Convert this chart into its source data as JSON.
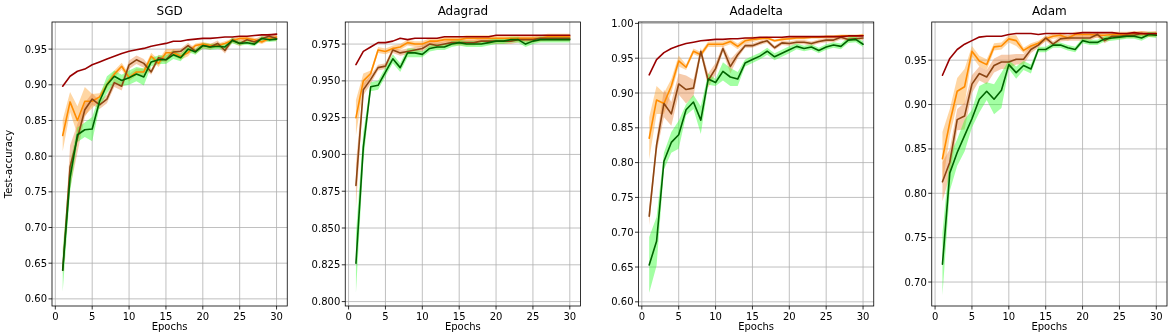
{
  "chart_data": [
    {
      "type": "line",
      "title": "SGD",
      "xlabel": "Epochs",
      "ylabel": "Test-accuracy",
      "grid": true,
      "x": [
        1,
        2,
        3,
        4,
        5,
        6,
        7,
        8,
        9,
        10,
        11,
        12,
        13,
        14,
        15,
        16,
        17,
        18,
        19,
        20,
        21,
        22,
        23,
        24,
        25,
        26,
        27,
        28,
        29,
        30
      ],
      "xlim": [
        -0.45,
        31.45
      ],
      "xticks": [
        0,
        5,
        10,
        15,
        20,
        25,
        30
      ],
      "ylim": [
        0.59,
        0.988
      ],
      "yticks": [
        {
          "value": 0.6,
          "label": "0.60"
        },
        {
          "value": 0.65,
          "label": "0.65"
        },
        {
          "value": 0.7,
          "label": "0.70"
        },
        {
          "value": 0.75,
          "label": "0.75"
        },
        {
          "value": 0.8,
          "label": "0.80"
        },
        {
          "value": 0.85,
          "label": "0.85"
        },
        {
          "value": 0.9,
          "label": "0.90"
        },
        {
          "value": 0.95,
          "label": "0.95"
        }
      ],
      "series": [
        {
          "color": "#ff8c00",
          "values": [
            0.829,
            0.876,
            0.85,
            0.877,
            0.877,
            0.883,
            0.9,
            0.915,
            0.926,
            0.91,
            0.918,
            0.918,
            0.94,
            0.93,
            0.945,
            0.945,
            0.94,
            0.945,
            0.955,
            0.957,
            0.955,
            0.955,
            0.958,
            0.962,
            0.965,
            0.965,
            0.963,
            0.96,
            0.965,
            0.967
          ],
          "lower": [
            0.807,
            0.862,
            0.83,
            0.857,
            0.867,
            0.878,
            0.895,
            0.91,
            0.921,
            0.905,
            0.913,
            0.913,
            0.935,
            0.925,
            0.94,
            0.94,
            0.935,
            0.94,
            0.952,
            0.954,
            0.952,
            0.952,
            0.955,
            0.959,
            0.962,
            0.962,
            0.96,
            0.957,
            0.962,
            0.964
          ],
          "upper": [
            0.851,
            0.89,
            0.87,
            0.897,
            0.887,
            0.888,
            0.905,
            0.92,
            0.931,
            0.915,
            0.923,
            0.923,
            0.945,
            0.935,
            0.95,
            0.95,
            0.945,
            0.95,
            0.958,
            0.96,
            0.958,
            0.958,
            0.961,
            0.965,
            0.968,
            0.968,
            0.966,
            0.963,
            0.968,
            0.97
          ]
        },
        {
          "color": "#8b4513",
          "values": [
            0.64,
            0.785,
            0.825,
            0.865,
            0.88,
            0.872,
            0.88,
            0.903,
            0.898,
            0.928,
            0.935,
            0.93,
            0.918,
            0.938,
            0.935,
            0.946,
            0.947,
            0.955,
            0.947,
            0.955,
            0.953,
            0.958,
            0.948,
            0.963,
            0.958,
            0.963,
            0.96,
            0.965,
            0.968,
            0.965
          ],
          "lower": [
            0.635,
            0.755,
            0.805,
            0.855,
            0.872,
            0.866,
            0.874,
            0.897,
            0.892,
            0.922,
            0.929,
            0.924,
            0.914,
            0.934,
            0.931,
            0.942,
            0.943,
            0.951,
            0.943,
            0.951,
            0.949,
            0.954,
            0.944,
            0.959,
            0.954,
            0.959,
            0.956,
            0.961,
            0.964,
            0.961
          ],
          "upper": [
            0.645,
            0.815,
            0.845,
            0.875,
            0.888,
            0.878,
            0.886,
            0.909,
            0.904,
            0.934,
            0.941,
            0.936,
            0.922,
            0.942,
            0.939,
            0.95,
            0.951,
            0.959,
            0.951,
            0.959,
            0.957,
            0.962,
            0.952,
            0.967,
            0.962,
            0.967,
            0.964,
            0.969,
            0.972,
            0.969
          ]
        },
        {
          "color": "#006400",
          "values": [
            0.64,
            0.77,
            0.83,
            0.837,
            0.838,
            0.877,
            0.9,
            0.912,
            0.906,
            0.91,
            0.915,
            0.911,
            0.932,
            0.935,
            0.935,
            0.942,
            0.938,
            0.95,
            0.946,
            0.955,
            0.953,
            0.954,
            0.953,
            0.962,
            0.958,
            0.959,
            0.957,
            0.965,
            0.963,
            0.964
          ],
          "lower": [
            0.61,
            0.75,
            0.82,
            0.827,
            0.821,
            0.869,
            0.888,
            0.904,
            0.898,
            0.9,
            0.905,
            0.899,
            0.926,
            0.929,
            0.929,
            0.936,
            0.933,
            0.946,
            0.942,
            0.951,
            0.949,
            0.95,
            0.949,
            0.958,
            0.955,
            0.956,
            0.954,
            0.962,
            0.96,
            0.961
          ],
          "upper": [
            0.67,
            0.79,
            0.84,
            0.847,
            0.855,
            0.885,
            0.912,
            0.92,
            0.914,
            0.92,
            0.925,
            0.923,
            0.938,
            0.941,
            0.941,
            0.948,
            0.943,
            0.954,
            0.95,
            0.959,
            0.957,
            0.958,
            0.957,
            0.966,
            0.961,
            0.962,
            0.96,
            0.968,
            0.966,
            0.967
          ]
        },
        {
          "color": "#990000",
          "values": [
            0.898,
            0.912,
            0.919,
            0.922,
            0.928,
            0.932,
            0.936,
            0.94,
            0.944,
            0.947,
            0.949,
            0.951,
            0.954,
            0.956,
            0.958,
            0.961,
            0.961,
            0.963,
            0.964,
            0.965,
            0.965,
            0.966,
            0.967,
            0.967,
            0.968,
            0.968,
            0.969,
            0.97,
            0.97,
            0.971
          ]
        }
      ]
    },
    {
      "type": "line",
      "title": "Adagrad",
      "xlabel": "Epochs",
      "grid": true,
      "x": [
        1,
        2,
        3,
        4,
        5,
        6,
        7,
        8,
        9,
        10,
        11,
        12,
        13,
        14,
        15,
        16,
        17,
        18,
        19,
        20,
        21,
        22,
        23,
        24,
        25,
        26,
        27,
        28,
        29,
        30
      ],
      "xlim": [
        -0.45,
        31.45
      ],
      "xticks": [
        0,
        5,
        10,
        15,
        20,
        25,
        30
      ],
      "ylim": [
        0.797,
        0.99
      ],
      "yticks": [
        {
          "value": 0.8,
          "label": "0.800"
        },
        {
          "value": 0.825,
          "label": "0.825"
        },
        {
          "value": 0.85,
          "label": "0.850"
        },
        {
          "value": 0.875,
          "label": "0.875"
        },
        {
          "value": 0.9,
          "label": "0.900"
        },
        {
          "value": 0.925,
          "label": "0.925"
        },
        {
          "value": 0.95,
          "label": "0.950"
        },
        {
          "value": 0.975,
          "label": "0.975"
        }
      ],
      "series": [
        {
          "color": "#ff8c00",
          "values": [
            0.925,
            0.95,
            0.955,
            0.971,
            0.97,
            0.972,
            0.973,
            0.976,
            0.975,
            0.975,
            0.977,
            0.977,
            0.978,
            0.978,
            0.978,
            0.979,
            0.979,
            0.979,
            0.979,
            0.979,
            0.979,
            0.979,
            0.979,
            0.979,
            0.979,
            0.979,
            0.98,
            0.98,
            0.98,
            0.98
          ],
          "lower": [
            0.913,
            0.945,
            0.953,
            0.969,
            0.968,
            0.97,
            0.971,
            0.974,
            0.973,
            0.973,
            0.975,
            0.975,
            0.976,
            0.976,
            0.976,
            0.977,
            0.977,
            0.977,
            0.977,
            0.977,
            0.977,
            0.977,
            0.977,
            0.977,
            0.977,
            0.977,
            0.978,
            0.978,
            0.978,
            0.978
          ],
          "upper": [
            0.937,
            0.955,
            0.957,
            0.973,
            0.972,
            0.974,
            0.975,
            0.978,
            0.977,
            0.977,
            0.979,
            0.979,
            0.98,
            0.98,
            0.98,
            0.981,
            0.981,
            0.981,
            0.981,
            0.981,
            0.981,
            0.981,
            0.981,
            0.981,
            0.981,
            0.981,
            0.982,
            0.982,
            0.982,
            0.982
          ]
        },
        {
          "color": "#8b4513",
          "values": [
            0.879,
            0.944,
            0.951,
            0.959,
            0.96,
            0.971,
            0.969,
            0.97,
            0.971,
            0.972,
            0.975,
            0.974,
            0.975,
            0.976,
            0.976,
            0.976,
            0.976,
            0.977,
            0.977,
            0.977,
            0.977,
            0.977,
            0.978,
            0.978,
            0.978,
            0.979,
            0.979,
            0.979,
            0.979,
            0.979
          ],
          "lower": [
            0.864,
            0.94,
            0.948,
            0.957,
            0.958,
            0.969,
            0.967,
            0.968,
            0.969,
            0.97,
            0.973,
            0.972,
            0.973,
            0.974,
            0.974,
            0.974,
            0.974,
            0.975,
            0.975,
            0.975,
            0.975,
            0.975,
            0.976,
            0.976,
            0.976,
            0.977,
            0.977,
            0.977,
            0.977,
            0.977
          ],
          "upper": [
            0.894,
            0.948,
            0.954,
            0.961,
            0.962,
            0.973,
            0.971,
            0.972,
            0.973,
            0.974,
            0.977,
            0.976,
            0.977,
            0.978,
            0.978,
            0.978,
            0.978,
            0.979,
            0.979,
            0.979,
            0.979,
            0.979,
            0.98,
            0.98,
            0.98,
            0.981,
            0.981,
            0.981,
            0.981,
            0.981
          ]
        },
        {
          "color": "#006400",
          "values": [
            0.826,
            0.905,
            0.946,
            0.947,
            0.956,
            0.965,
            0.959,
            0.969,
            0.969,
            0.968,
            0.972,
            0.973,
            0.973,
            0.975,
            0.976,
            0.975,
            0.975,
            0.975,
            0.976,
            0.977,
            0.977,
            0.978,
            0.978,
            0.975,
            0.977,
            0.978,
            0.978,
            0.978,
            0.978,
            0.978
          ],
          "lower": [
            0.806,
            0.895,
            0.943,
            0.944,
            0.953,
            0.962,
            0.956,
            0.966,
            0.966,
            0.966,
            0.97,
            0.971,
            0.971,
            0.973,
            0.974,
            0.973,
            0.973,
            0.973,
            0.974,
            0.975,
            0.975,
            0.976,
            0.976,
            0.973,
            0.975,
            0.976,
            0.976,
            0.976,
            0.976,
            0.976
          ],
          "upper": [
            0.846,
            0.915,
            0.949,
            0.95,
            0.959,
            0.968,
            0.962,
            0.972,
            0.972,
            0.97,
            0.974,
            0.975,
            0.975,
            0.977,
            0.978,
            0.977,
            0.977,
            0.977,
            0.978,
            0.979,
            0.979,
            0.98,
            0.98,
            0.977,
            0.979,
            0.98,
            0.98,
            0.98,
            0.98,
            0.98
          ]
        },
        {
          "color": "#990000",
          "values": [
            0.961,
            0.97,
            0.973,
            0.976,
            0.976,
            0.977,
            0.979,
            0.978,
            0.979,
            0.979,
            0.979,
            0.979,
            0.98,
            0.98,
            0.98,
            0.98,
            0.98,
            0.98,
            0.98,
            0.981,
            0.981,
            0.981,
            0.981,
            0.981,
            0.981,
            0.981,
            0.981,
            0.981,
            0.981,
            0.981
          ]
        }
      ]
    },
    {
      "type": "line",
      "title": "Adadelta",
      "xlabel": "Epochs",
      "grid": true,
      "x": [
        1,
        2,
        3,
        4,
        5,
        6,
        7,
        8,
        9,
        10,
        11,
        12,
        13,
        14,
        15,
        16,
        17,
        18,
        19,
        20,
        21,
        22,
        23,
        24,
        25,
        26,
        27,
        28,
        29,
        30
      ],
      "xlim": [
        -0.45,
        31.45
      ],
      "xticks": [
        0,
        5,
        10,
        15,
        20,
        25,
        30
      ],
      "ylim": [
        0.594,
        1.002
      ],
      "yticks": [
        {
          "value": 0.6,
          "label": "0.60"
        },
        {
          "value": 0.65,
          "label": "0.65"
        },
        {
          "value": 0.7,
          "label": "0.70"
        },
        {
          "value": 0.75,
          "label": "0.75"
        },
        {
          "value": 0.8,
          "label": "0.80"
        },
        {
          "value": 0.85,
          "label": "0.85"
        },
        {
          "value": 0.9,
          "label": "0.90"
        },
        {
          "value": 0.95,
          "label": "0.95"
        },
        {
          "value": 1.0,
          "label": "1.00"
        }
      ],
      "series": [
        {
          "color": "#ff8c00",
          "values": [
            0.835,
            0.89,
            0.885,
            0.91,
            0.946,
            0.937,
            0.96,
            0.955,
            0.97,
            0.97,
            0.97,
            0.974,
            0.967,
            0.975,
            0.977,
            0.978,
            0.979,
            0.975,
            0.977,
            0.978,
            0.979,
            0.979,
            0.98,
            0.98,
            0.981,
            0.981,
            0.982,
            0.982,
            0.982,
            0.983
          ],
          "lower": [
            0.805,
            0.87,
            0.87,
            0.9,
            0.938,
            0.933,
            0.956,
            0.951,
            0.966,
            0.966,
            0.966,
            0.97,
            0.963,
            0.971,
            0.973,
            0.976,
            0.977,
            0.973,
            0.975,
            0.976,
            0.977,
            0.977,
            0.978,
            0.978,
            0.979,
            0.979,
            0.98,
            0.98,
            0.98,
            0.981
          ],
          "upper": [
            0.865,
            0.91,
            0.9,
            0.92,
            0.954,
            0.941,
            0.964,
            0.959,
            0.974,
            0.974,
            0.974,
            0.978,
            0.971,
            0.979,
            0.981,
            0.98,
            0.981,
            0.977,
            0.979,
            0.98,
            0.981,
            0.981,
            0.982,
            0.982,
            0.983,
            0.983,
            0.984,
            0.984,
            0.984,
            0.985
          ]
        },
        {
          "color": "#8b4513",
          "values": [
            0.723,
            0.825,
            0.885,
            0.87,
            0.913,
            0.905,
            0.907,
            0.96,
            0.918,
            0.935,
            0.964,
            0.938,
            0.955,
            0.968,
            0.968,
            0.972,
            0.975,
            0.965,
            0.972,
            0.971,
            0.973,
            0.973,
            0.971,
            0.974,
            0.976,
            0.976,
            0.98,
            0.977,
            0.978,
            0.979
          ],
          "lower": [
            0.71,
            0.815,
            0.865,
            0.853,
            0.898,
            0.885,
            0.895,
            0.955,
            0.908,
            0.927,
            0.959,
            0.928,
            0.95,
            0.965,
            0.965,
            0.969,
            0.972,
            0.962,
            0.969,
            0.968,
            0.97,
            0.97,
            0.968,
            0.971,
            0.973,
            0.973,
            0.977,
            0.974,
            0.975,
            0.976
          ],
          "upper": [
            0.736,
            0.835,
            0.905,
            0.887,
            0.928,
            0.925,
            0.919,
            0.965,
            0.928,
            0.943,
            0.969,
            0.948,
            0.96,
            0.971,
            0.971,
            0.975,
            0.978,
            0.968,
            0.975,
            0.974,
            0.976,
            0.976,
            0.974,
            0.977,
            0.979,
            0.979,
            0.983,
            0.98,
            0.981,
            0.982
          ]
        },
        {
          "color": "#006400",
          "values": [
            0.653,
            0.687,
            0.802,
            0.829,
            0.84,
            0.876,
            0.887,
            0.861,
            0.92,
            0.915,
            0.931,
            0.923,
            0.92,
            0.943,
            0.948,
            0.953,
            0.96,
            0.952,
            0.957,
            0.962,
            0.967,
            0.964,
            0.966,
            0.961,
            0.966,
            0.969,
            0.967,
            0.976,
            0.977,
            0.97
          ],
          "lower": [
            0.613,
            0.652,
            0.79,
            0.814,
            0.82,
            0.868,
            0.877,
            0.841,
            0.912,
            0.91,
            0.918,
            0.91,
            0.91,
            0.938,
            0.943,
            0.948,
            0.955,
            0.947,
            0.952,
            0.957,
            0.963,
            0.96,
            0.962,
            0.957,
            0.962,
            0.965,
            0.963,
            0.972,
            0.973,
            0.966
          ],
          "upper": [
            0.693,
            0.722,
            0.814,
            0.844,
            0.86,
            0.884,
            0.897,
            0.881,
            0.928,
            0.92,
            0.944,
            0.936,
            0.93,
            0.948,
            0.953,
            0.958,
            0.965,
            0.957,
            0.962,
            0.967,
            0.971,
            0.968,
            0.97,
            0.965,
            0.97,
            0.973,
            0.971,
            0.98,
            0.981,
            0.974
          ]
        },
        {
          "color": "#990000",
          "values": [
            0.926,
            0.948,
            0.958,
            0.964,
            0.968,
            0.971,
            0.973,
            0.975,
            0.976,
            0.977,
            0.977,
            0.978,
            0.978,
            0.979,
            0.979,
            0.98,
            0.98,
            0.98,
            0.98,
            0.981,
            0.981,
            0.981,
            0.981,
            0.981,
            0.981,
            0.981,
            0.981,
            0.982,
            0.982,
            0.982
          ]
        }
      ]
    },
    {
      "type": "line",
      "title": "Adam",
      "xlabel": "Epochs",
      "grid": true,
      "x": [
        1,
        2,
        3,
        4,
        5,
        6,
        7,
        8,
        9,
        10,
        11,
        12,
        13,
        14,
        15,
        16,
        17,
        18,
        19,
        20,
        21,
        22,
        23,
        24,
        25,
        26,
        27,
        28,
        29,
        30
      ],
      "xlim": [
        -0.45,
        31.45
      ],
      "xticks": [
        0,
        5,
        10,
        15,
        20,
        25,
        30
      ],
      "ylim": [
        0.673,
        0.993
      ],
      "yticks": [
        {
          "value": 0.7,
          "label": "0.70"
        },
        {
          "value": 0.75,
          "label": "0.75"
        },
        {
          "value": 0.8,
          "label": "0.80"
        },
        {
          "value": 0.85,
          "label": "0.85"
        },
        {
          "value": 0.9,
          "label": "0.90"
        },
        {
          "value": 0.95,
          "label": "0.95"
        }
      ],
      "series": [
        {
          "color": "#ff8c00",
          "values": [
            0.839,
            0.88,
            0.915,
            0.92,
            0.96,
            0.949,
            0.945,
            0.965,
            0.966,
            0.974,
            0.972,
            0.961,
            0.966,
            0.969,
            0.974,
            0.977,
            0.978,
            0.975,
            0.979,
            0.979,
            0.979,
            0.978,
            0.978,
            0.979,
            0.979,
            0.979,
            0.98,
            0.98,
            0.979,
            0.98
          ],
          "lower": [
            0.809,
            0.865,
            0.9,
            0.9,
            0.954,
            0.943,
            0.939,
            0.961,
            0.962,
            0.97,
            0.966,
            0.958,
            0.963,
            0.966,
            0.971,
            0.974,
            0.975,
            0.972,
            0.976,
            0.976,
            0.976,
            0.975,
            0.975,
            0.976,
            0.976,
            0.976,
            0.977,
            0.977,
            0.976,
            0.977
          ],
          "upper": [
            0.869,
            0.895,
            0.93,
            0.94,
            0.966,
            0.955,
            0.951,
            0.969,
            0.97,
            0.978,
            0.978,
            0.964,
            0.969,
            0.972,
            0.977,
            0.98,
            0.981,
            0.978,
            0.982,
            0.982,
            0.982,
            0.981,
            0.981,
            0.982,
            0.982,
            0.982,
            0.983,
            0.983,
            0.982,
            0.983
          ]
        },
        {
          "color": "#8b4513",
          "values": [
            0.813,
            0.835,
            0.883,
            0.887,
            0.923,
            0.935,
            0.931,
            0.944,
            0.948,
            0.948,
            0.951,
            0.951,
            0.962,
            0.967,
            0.975,
            0.968,
            0.974,
            0.975,
            0.975,
            0.975,
            0.975,
            0.979,
            0.972,
            0.977,
            0.977,
            0.978,
            0.978,
            0.98,
            0.979,
            0.979
          ],
          "lower": [
            0.791,
            0.82,
            0.871,
            0.872,
            0.913,
            0.927,
            0.923,
            0.936,
            0.94,
            0.94,
            0.945,
            0.945,
            0.958,
            0.964,
            0.972,
            0.965,
            0.971,
            0.972,
            0.972,
            0.972,
            0.972,
            0.976,
            0.969,
            0.974,
            0.974,
            0.975,
            0.975,
            0.977,
            0.976,
            0.976
          ],
          "upper": [
            0.835,
            0.85,
            0.895,
            0.902,
            0.933,
            0.943,
            0.939,
            0.952,
            0.956,
            0.956,
            0.957,
            0.957,
            0.966,
            0.97,
            0.978,
            0.971,
            0.977,
            0.978,
            0.978,
            0.978,
            0.978,
            0.982,
            0.975,
            0.98,
            0.98,
            0.981,
            0.981,
            0.983,
            0.982,
            0.982
          ]
        },
        {
          "color": "#006400",
          "values": [
            0.72,
            0.823,
            0.846,
            0.865,
            0.884,
            0.906,
            0.915,
            0.906,
            0.916,
            0.945,
            0.936,
            0.944,
            0.94,
            0.962,
            0.962,
            0.967,
            0.967,
            0.964,
            0.962,
            0.972,
            0.97,
            0.97,
            0.974,
            0.975,
            0.976,
            0.977,
            0.977,
            0.975,
            0.979,
            0.978
          ],
          "lower": [
            0.685,
            0.803,
            0.831,
            0.847,
            0.874,
            0.891,
            0.905,
            0.889,
            0.896,
            0.94,
            0.929,
            0.939,
            0.935,
            0.959,
            0.959,
            0.964,
            0.964,
            0.961,
            0.959,
            0.969,
            0.967,
            0.967,
            0.971,
            0.972,
            0.973,
            0.974,
            0.974,
            0.972,
            0.976,
            0.975
          ],
          "upper": [
            0.755,
            0.843,
            0.861,
            0.883,
            0.894,
            0.921,
            0.925,
            0.923,
            0.936,
            0.95,
            0.943,
            0.949,
            0.945,
            0.965,
            0.965,
            0.97,
            0.97,
            0.967,
            0.965,
            0.975,
            0.973,
            0.973,
            0.977,
            0.978,
            0.979,
            0.98,
            0.98,
            0.978,
            0.982,
            0.981
          ]
        },
        {
          "color": "#990000",
          "values": [
            0.933,
            0.952,
            0.962,
            0.968,
            0.972,
            0.976,
            0.977,
            0.977,
            0.977,
            0.979,
            0.98,
            0.98,
            0.98,
            0.979,
            0.98,
            0.98,
            0.98,
            0.98,
            0.98,
            0.981,
            0.981,
            0.981,
            0.981,
            0.981,
            0.98,
            0.98,
            0.981,
            0.98,
            0.98,
            0.98
          ]
        }
      ]
    }
  ]
}
